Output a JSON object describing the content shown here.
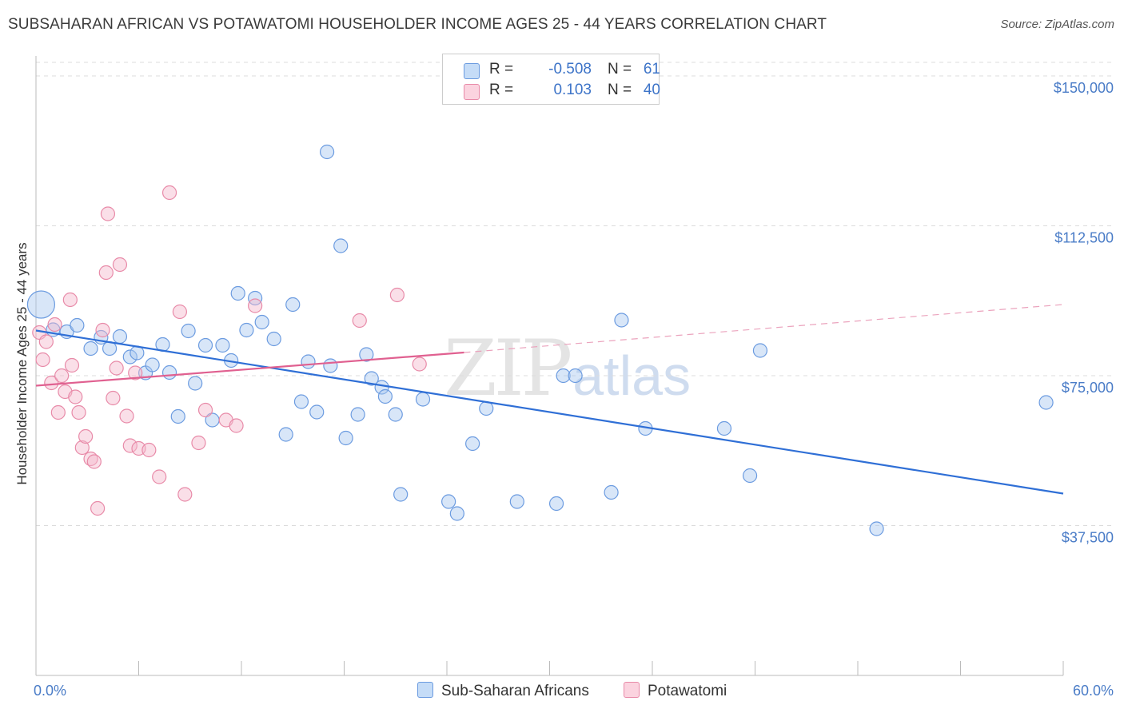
{
  "title": "SUBSAHARAN AFRICAN VS POTAWATOMI HOUSEHOLDER INCOME AGES 25 - 44 YEARS CORRELATION CHART",
  "source": "Source: ZipAtlas.com",
  "watermark": {
    "part1": "ZIP",
    "part2": "atlas"
  },
  "legend": {
    "rows": [
      {
        "r_label": "R =",
        "r_value": "-0.508",
        "n_label": "N =",
        "n_value": "61",
        "color": "#a9c8f0"
      },
      {
        "r_label": "R =",
        "r_value": "0.103",
        "n_label": "N =",
        "n_value": "40",
        "color": "#f5b8cc"
      }
    ]
  },
  "bottom_legend": [
    {
      "label": "Sub-Saharan Africans",
      "color": "#a9c8f0"
    },
    {
      "label": "Potawatomi",
      "color": "#f5b8cc"
    }
  ],
  "chart_data": {
    "type": "scatter",
    "title": "SUBSAHARAN AFRICAN VS POTAWATOMI HOUSEHOLDER INCOME AGES 25 - 44 YEARS CORRELATION CHART",
    "xlabel": "",
    "ylabel": "Householder Income Ages 25 - 44 years",
    "xlim": [
      0,
      60
    ],
    "ylim": [
      0,
      155000
    ],
    "x_tick_labels": [
      "0.0%",
      "60.0%"
    ],
    "y_ticks": [
      37500,
      75000,
      112500,
      150000
    ],
    "y_tick_labels": [
      "$37,500",
      "$75,000",
      "$112,500",
      "$150,000"
    ],
    "grid": "horizontal dashed",
    "legend_position": "top-center",
    "series": [
      {
        "name": "Sub-Saharan Africans",
        "color": "#a9c8f0",
        "stroke": "#6b9be0",
        "trend": {
          "x": [
            0,
            60
          ],
          "y": [
            86300,
            45500
          ],
          "color": "#2f6fd6",
          "style": "solid"
        },
        "points": [
          {
            "x": 0.3,
            "y": 92800,
            "big": true
          },
          {
            "x": 1.0,
            "y": 86500
          },
          {
            "x": 1.8,
            "y": 86000
          },
          {
            "x": 2.4,
            "y": 87600
          },
          {
            "x": 3.2,
            "y": 81800
          },
          {
            "x": 3.8,
            "y": 84600
          },
          {
            "x": 4.3,
            "y": 81800
          },
          {
            "x": 4.9,
            "y": 84800
          },
          {
            "x": 5.5,
            "y": 79700
          },
          {
            "x": 5.9,
            "y": 80700
          },
          {
            "x": 6.4,
            "y": 75700
          },
          {
            "x": 6.8,
            "y": 77700
          },
          {
            "x": 7.4,
            "y": 82800
          },
          {
            "x": 7.8,
            "y": 75800
          },
          {
            "x": 8.3,
            "y": 64800
          },
          {
            "x": 8.9,
            "y": 86200
          },
          {
            "x": 9.3,
            "y": 73100
          },
          {
            "x": 9.9,
            "y": 82600
          },
          {
            "x": 10.3,
            "y": 63900
          },
          {
            "x": 10.9,
            "y": 82600
          },
          {
            "x": 11.4,
            "y": 78800
          },
          {
            "x": 11.8,
            "y": 95600
          },
          {
            "x": 12.3,
            "y": 86400
          },
          {
            "x": 12.8,
            "y": 94400
          },
          {
            "x": 13.2,
            "y": 88400
          },
          {
            "x": 13.9,
            "y": 84200
          },
          {
            "x": 14.6,
            "y": 60300
          },
          {
            "x": 15.0,
            "y": 92800
          },
          {
            "x": 15.5,
            "y": 68500
          },
          {
            "x": 15.9,
            "y": 78500
          },
          {
            "x": 16.4,
            "y": 65900
          },
          {
            "x": 17.0,
            "y": 131000
          },
          {
            "x": 17.2,
            "y": 77500
          },
          {
            "x": 17.8,
            "y": 107500
          },
          {
            "x": 18.1,
            "y": 59400
          },
          {
            "x": 18.8,
            "y": 65300
          },
          {
            "x": 19.3,
            "y": 80300
          },
          {
            "x": 19.6,
            "y": 74300
          },
          {
            "x": 20.2,
            "y": 72100
          },
          {
            "x": 20.4,
            "y": 69800
          },
          {
            "x": 21.0,
            "y": 65300
          },
          {
            "x": 21.3,
            "y": 45300
          },
          {
            "x": 22.6,
            "y": 69100
          },
          {
            "x": 24.1,
            "y": 43500
          },
          {
            "x": 24.6,
            "y": 40500
          },
          {
            "x": 25.5,
            "y": 58000
          },
          {
            "x": 26.3,
            "y": 66800
          },
          {
            "x": 28.1,
            "y": 43500
          },
          {
            "x": 30.4,
            "y": 43000
          },
          {
            "x": 30.8,
            "y": 75000
          },
          {
            "x": 31.5,
            "y": 75000
          },
          {
            "x": 33.6,
            "y": 45800
          },
          {
            "x": 34.2,
            "y": 88900
          },
          {
            "x": 35.6,
            "y": 61800
          },
          {
            "x": 40.2,
            "y": 61800
          },
          {
            "x": 41.7,
            "y": 50000
          },
          {
            "x": 42.3,
            "y": 81300
          },
          {
            "x": 49.1,
            "y": 36700
          },
          {
            "x": 59.0,
            "y": 68300
          }
        ]
      },
      {
        "name": "Potawatomi",
        "color": "#f5b8cc",
        "stroke": "#e88aa8",
        "trend": {
          "x": [
            0,
            25
          ],
          "y": [
            72500,
            80800
          ],
          "color": "#e06090",
          "style": "solid"
        },
        "trend_extension": {
          "x": [
            25,
            60
          ],
          "y": [
            80800,
            92800
          ],
          "style": "dashed"
        },
        "points": [
          {
            "x": 0.2,
            "y": 85800
          },
          {
            "x": 0.4,
            "y": 79000
          },
          {
            "x": 0.6,
            "y": 83500
          },
          {
            "x": 0.9,
            "y": 73200
          },
          {
            "x": 1.1,
            "y": 87800
          },
          {
            "x": 1.3,
            "y": 65800
          },
          {
            "x": 1.5,
            "y": 75000
          },
          {
            "x": 1.7,
            "y": 71000
          },
          {
            "x": 2.0,
            "y": 94000
          },
          {
            "x": 2.1,
            "y": 77600
          },
          {
            "x": 2.3,
            "y": 69700
          },
          {
            "x": 2.5,
            "y": 65800
          },
          {
            "x": 2.7,
            "y": 57000
          },
          {
            "x": 2.9,
            "y": 59800
          },
          {
            "x": 3.2,
            "y": 54200
          },
          {
            "x": 3.4,
            "y": 53500
          },
          {
            "x": 3.6,
            "y": 41800
          },
          {
            "x": 3.9,
            "y": 86400
          },
          {
            "x": 4.1,
            "y": 100800
          },
          {
            "x": 4.2,
            "y": 115500
          },
          {
            "x": 4.5,
            "y": 69400
          },
          {
            "x": 4.7,
            "y": 76900
          },
          {
            "x": 4.9,
            "y": 102800
          },
          {
            "x": 5.3,
            "y": 64900
          },
          {
            "x": 5.5,
            "y": 57500
          },
          {
            "x": 5.8,
            "y": 75700
          },
          {
            "x": 6.0,
            "y": 56800
          },
          {
            "x": 6.6,
            "y": 56400
          },
          {
            "x": 7.2,
            "y": 49700
          },
          {
            "x": 7.8,
            "y": 120800
          },
          {
            "x": 8.4,
            "y": 91000
          },
          {
            "x": 8.7,
            "y": 45300
          },
          {
            "x": 9.5,
            "y": 58200
          },
          {
            "x": 9.9,
            "y": 66400
          },
          {
            "x": 11.1,
            "y": 63900
          },
          {
            "x": 11.7,
            "y": 62500
          },
          {
            "x": 12.8,
            "y": 92500
          },
          {
            "x": 18.9,
            "y": 88800
          },
          {
            "x": 21.1,
            "y": 95200
          },
          {
            "x": 22.4,
            "y": 77900
          }
        ]
      }
    ]
  }
}
